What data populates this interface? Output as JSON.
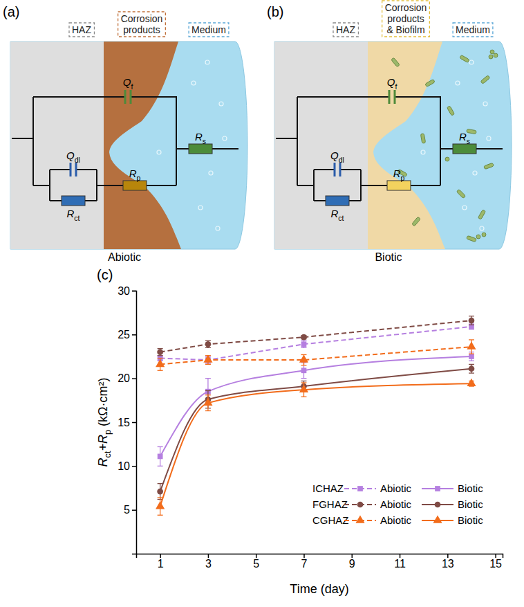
{
  "panels": [
    {
      "letter": "(a)",
      "layers": [
        "HAZ",
        "Corrosion products",
        "Medium"
      ],
      "elements": [
        [
          "Q",
          "f"
        ],
        [
          "Q",
          "dl"
        ],
        [
          "R",
          "ct"
        ],
        [
          "R",
          "p"
        ],
        [
          "R",
          "s"
        ]
      ],
      "caption": "Abiotic"
    },
    {
      "letter": "(b)",
      "layers": [
        "HAZ",
        "Corrosion products & Biofilm",
        "Medium"
      ],
      "elements": [
        [
          "Q",
          "f"
        ],
        [
          "Q",
          "dl"
        ],
        [
          "R",
          "ct"
        ],
        [
          "R",
          "p"
        ],
        [
          "R",
          "s"
        ]
      ],
      "caption": "Biotic"
    }
  ],
  "chart_data": {
    "type": "line",
    "letter": "(c)",
    "xlabel": "Time (day)",
    "ylabel": [
      "R",
      "ct",
      "+R",
      "p",
      " (kΩ·cm²)"
    ],
    "x": [
      1,
      3,
      7,
      14
    ],
    "xlim": [
      0,
      15.3
    ],
    "xticks": [
      1,
      3,
      5,
      7,
      9,
      11,
      13,
      15
    ],
    "ylim": [
      0,
      30
    ],
    "yticks": [
      5,
      10,
      15,
      20,
      25,
      30
    ],
    "legend": "lower right",
    "legend_groups": [
      "ICHAZ",
      "FGHAZ",
      "CGHAZ"
    ],
    "series": [
      {
        "name": "Abiotic",
        "color": "#b57fe0",
        "type": "line",
        "line_style": "dashed",
        "marker": "square",
        "values": [
          22.3,
          22.1,
          23.9,
          25.9
        ],
        "errors": [
          0.3,
          0.4,
          0.4,
          0.3
        ]
      },
      {
        "name": "Biotic",
        "color": "#b57fe0",
        "type": "spline",
        "line_style": "solid",
        "marker": "square",
        "values": [
          11.1,
          18.5,
          20.9,
          22.5
        ],
        "errors": [
          1.1,
          1.5,
          0.9,
          0.5
        ]
      },
      {
        "name": "Abiotic",
        "color": "#7f4b45",
        "type": "line",
        "line_style": "dashed",
        "marker": "circle",
        "values": [
          23.0,
          23.9,
          24.7,
          26.6
        ],
        "errors": [
          0.4,
          0.4,
          0.2,
          0.5
        ]
      },
      {
        "name": "Biotic",
        "color": "#7f4b45",
        "type": "spline",
        "line_style": "solid",
        "marker": "circle",
        "values": [
          7.1,
          17.6,
          19.1,
          21.1
        ],
        "errors": [
          0.9,
          1.0,
          0.6,
          0.5
        ]
      },
      {
        "name": "Abiotic",
        "color": "#f26c1b",
        "type": "line",
        "line_style": "dashed",
        "marker": "triangle",
        "values": [
          21.6,
          22.1,
          22.1,
          23.6
        ],
        "errors": [
          0.7,
          0.5,
          0.6,
          0.8
        ]
      },
      {
        "name": "Biotic",
        "color": "#f26c1b",
        "type": "spline",
        "line_style": "solid",
        "marker": "triangle",
        "values": [
          5.4,
          17.2,
          18.7,
          19.4
        ],
        "errors": [
          1.0,
          0.9,
          0.8,
          0.3
        ]
      }
    ]
  }
}
